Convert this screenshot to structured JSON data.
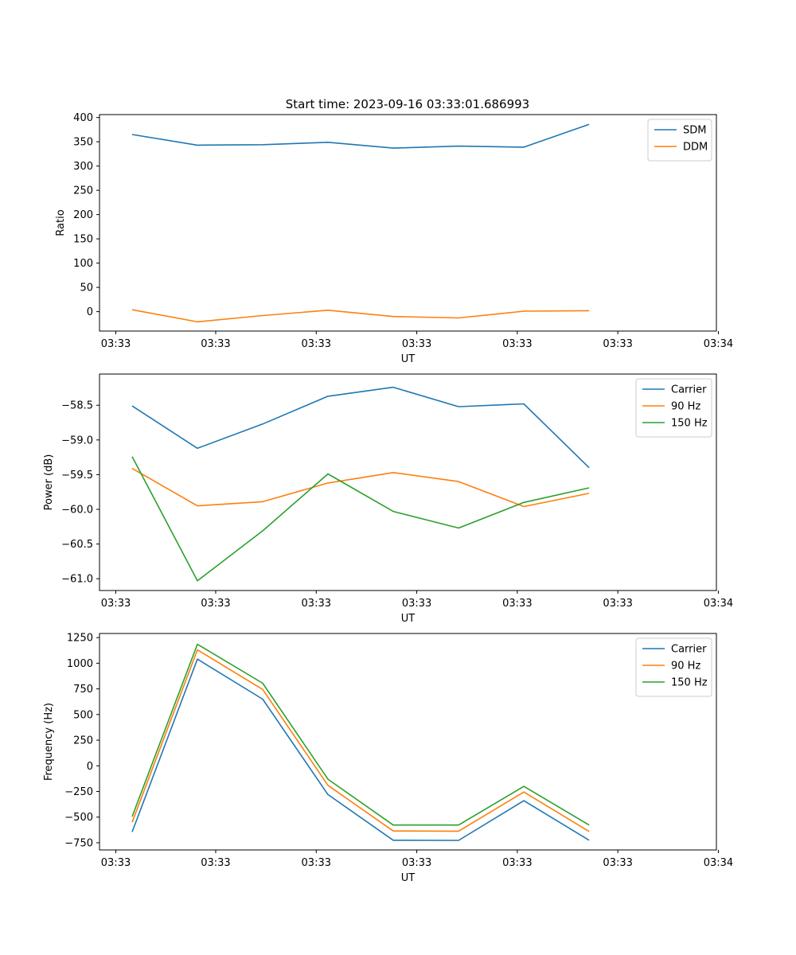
{
  "figure_title": "Start time: 2023-09-16 03:33:01.686993",
  "chart_data": [
    {
      "type": "line",
      "title": "Start time: 2023-09-16 03:33:01.686993",
      "xlabel": "UT",
      "ylabel": "Ratio",
      "x_index": [
        0,
        1,
        2,
        3,
        4,
        5,
        6,
        7
      ],
      "xlim": [
        -0.5,
        8.95
      ],
      "x_ticks": [
        {
          "pos": -0.25,
          "label": "03:33"
        },
        {
          "pos": 1.28,
          "label": "03:33"
        },
        {
          "pos": 2.82,
          "label": "03:33"
        },
        {
          "pos": 4.36,
          "label": "03:33"
        },
        {
          "pos": 5.9,
          "label": "03:33"
        },
        {
          "pos": 7.44,
          "label": "03:33"
        },
        {
          "pos": 8.98,
          "label": "03:34"
        }
      ],
      "ylim": [
        -40,
        406
      ],
      "y_ticks": [
        0,
        50,
        100,
        150,
        200,
        250,
        300,
        350,
        400
      ],
      "legend_position": "upper right",
      "series": [
        {
          "name": "SDM",
          "color": "#1f77b4",
          "values": [
            365,
            343,
            344,
            349,
            337,
            341,
            339,
            386
          ]
        },
        {
          "name": "DDM",
          "color": "#ff7f0e",
          "values": [
            4,
            -21,
            -8,
            3,
            -10,
            -13,
            1,
            2
          ]
        }
      ]
    },
    {
      "type": "line",
      "title": "",
      "xlabel": "UT",
      "ylabel": "Power (dB)",
      "x_index": [
        0,
        1,
        2,
        3,
        4,
        5,
        6,
        7
      ],
      "xlim": [
        -0.5,
        8.95
      ],
      "x_ticks": [
        {
          "pos": -0.25,
          "label": "03:33"
        },
        {
          "pos": 1.28,
          "label": "03:33"
        },
        {
          "pos": 2.82,
          "label": "03:33"
        },
        {
          "pos": 4.36,
          "label": "03:33"
        },
        {
          "pos": 5.9,
          "label": "03:33"
        },
        {
          "pos": 7.44,
          "label": "03:33"
        },
        {
          "pos": 8.98,
          "label": "03:34"
        }
      ],
      "ylim": [
        -61.17,
        -58.05
      ],
      "y_ticks": [
        -61.0,
        -60.5,
        -60.0,
        -59.5,
        -59.0,
        -58.5
      ],
      "y_tick_labels": [
        "−61.0",
        "−60.5",
        "−60.0",
        "−59.5",
        "−59.0",
        "−58.5"
      ],
      "legend_position": "upper right",
      "series": [
        {
          "name": "Carrier",
          "color": "#1f77b4",
          "values": [
            -58.51,
            -59.12,
            -58.77,
            -58.37,
            -58.24,
            -58.52,
            -58.48,
            -59.4
          ]
        },
        {
          "name": "90 Hz",
          "color": "#ff7f0e",
          "values": [
            -59.41,
            -59.95,
            -59.89,
            -59.62,
            -59.47,
            -59.6,
            -59.96,
            -59.77
          ]
        },
        {
          "name": "150 Hz",
          "color": "#2ca02c",
          "values": [
            -59.24,
            -61.03,
            -60.31,
            -59.49,
            -60.03,
            -60.27,
            -59.9,
            -59.69
          ]
        }
      ]
    },
    {
      "type": "line",
      "title": "",
      "xlabel": "UT",
      "ylabel": "Frequency (Hz)",
      "x_index": [
        0,
        1,
        2,
        3,
        4,
        5,
        6,
        7
      ],
      "xlim": [
        -0.5,
        8.95
      ],
      "x_ticks": [
        {
          "pos": -0.25,
          "label": "03:33"
        },
        {
          "pos": 1.28,
          "label": "03:33"
        },
        {
          "pos": 2.82,
          "label": "03:33"
        },
        {
          "pos": 4.36,
          "label": "03:33"
        },
        {
          "pos": 5.9,
          "label": "03:33"
        },
        {
          "pos": 7.44,
          "label": "03:33"
        },
        {
          "pos": 8.98,
          "label": "03:34"
        }
      ],
      "ylim": [
        -820,
        1290
      ],
      "y_ticks": [
        -750,
        -500,
        -250,
        0,
        250,
        500,
        750,
        1000,
        1250
      ],
      "y_tick_labels": [
        "−750",
        "−500",
        "−250",
        "0",
        "250",
        "500",
        "750",
        "1000",
        "1250"
      ],
      "legend_position": "upper right",
      "series": [
        {
          "name": "Carrier",
          "color": "#1f77b4",
          "values": [
            -645,
            1040,
            650,
            -280,
            -725,
            -727,
            -340,
            -725
          ]
        },
        {
          "name": "90 Hz",
          "color": "#ff7f0e",
          "values": [
            -550,
            1130,
            745,
            -190,
            -635,
            -637,
            -255,
            -640
          ]
        },
        {
          "name": "150 Hz",
          "color": "#2ca02c",
          "values": [
            -495,
            1185,
            805,
            -130,
            -577,
            -577,
            -200,
            -577
          ]
        }
      ]
    }
  ]
}
